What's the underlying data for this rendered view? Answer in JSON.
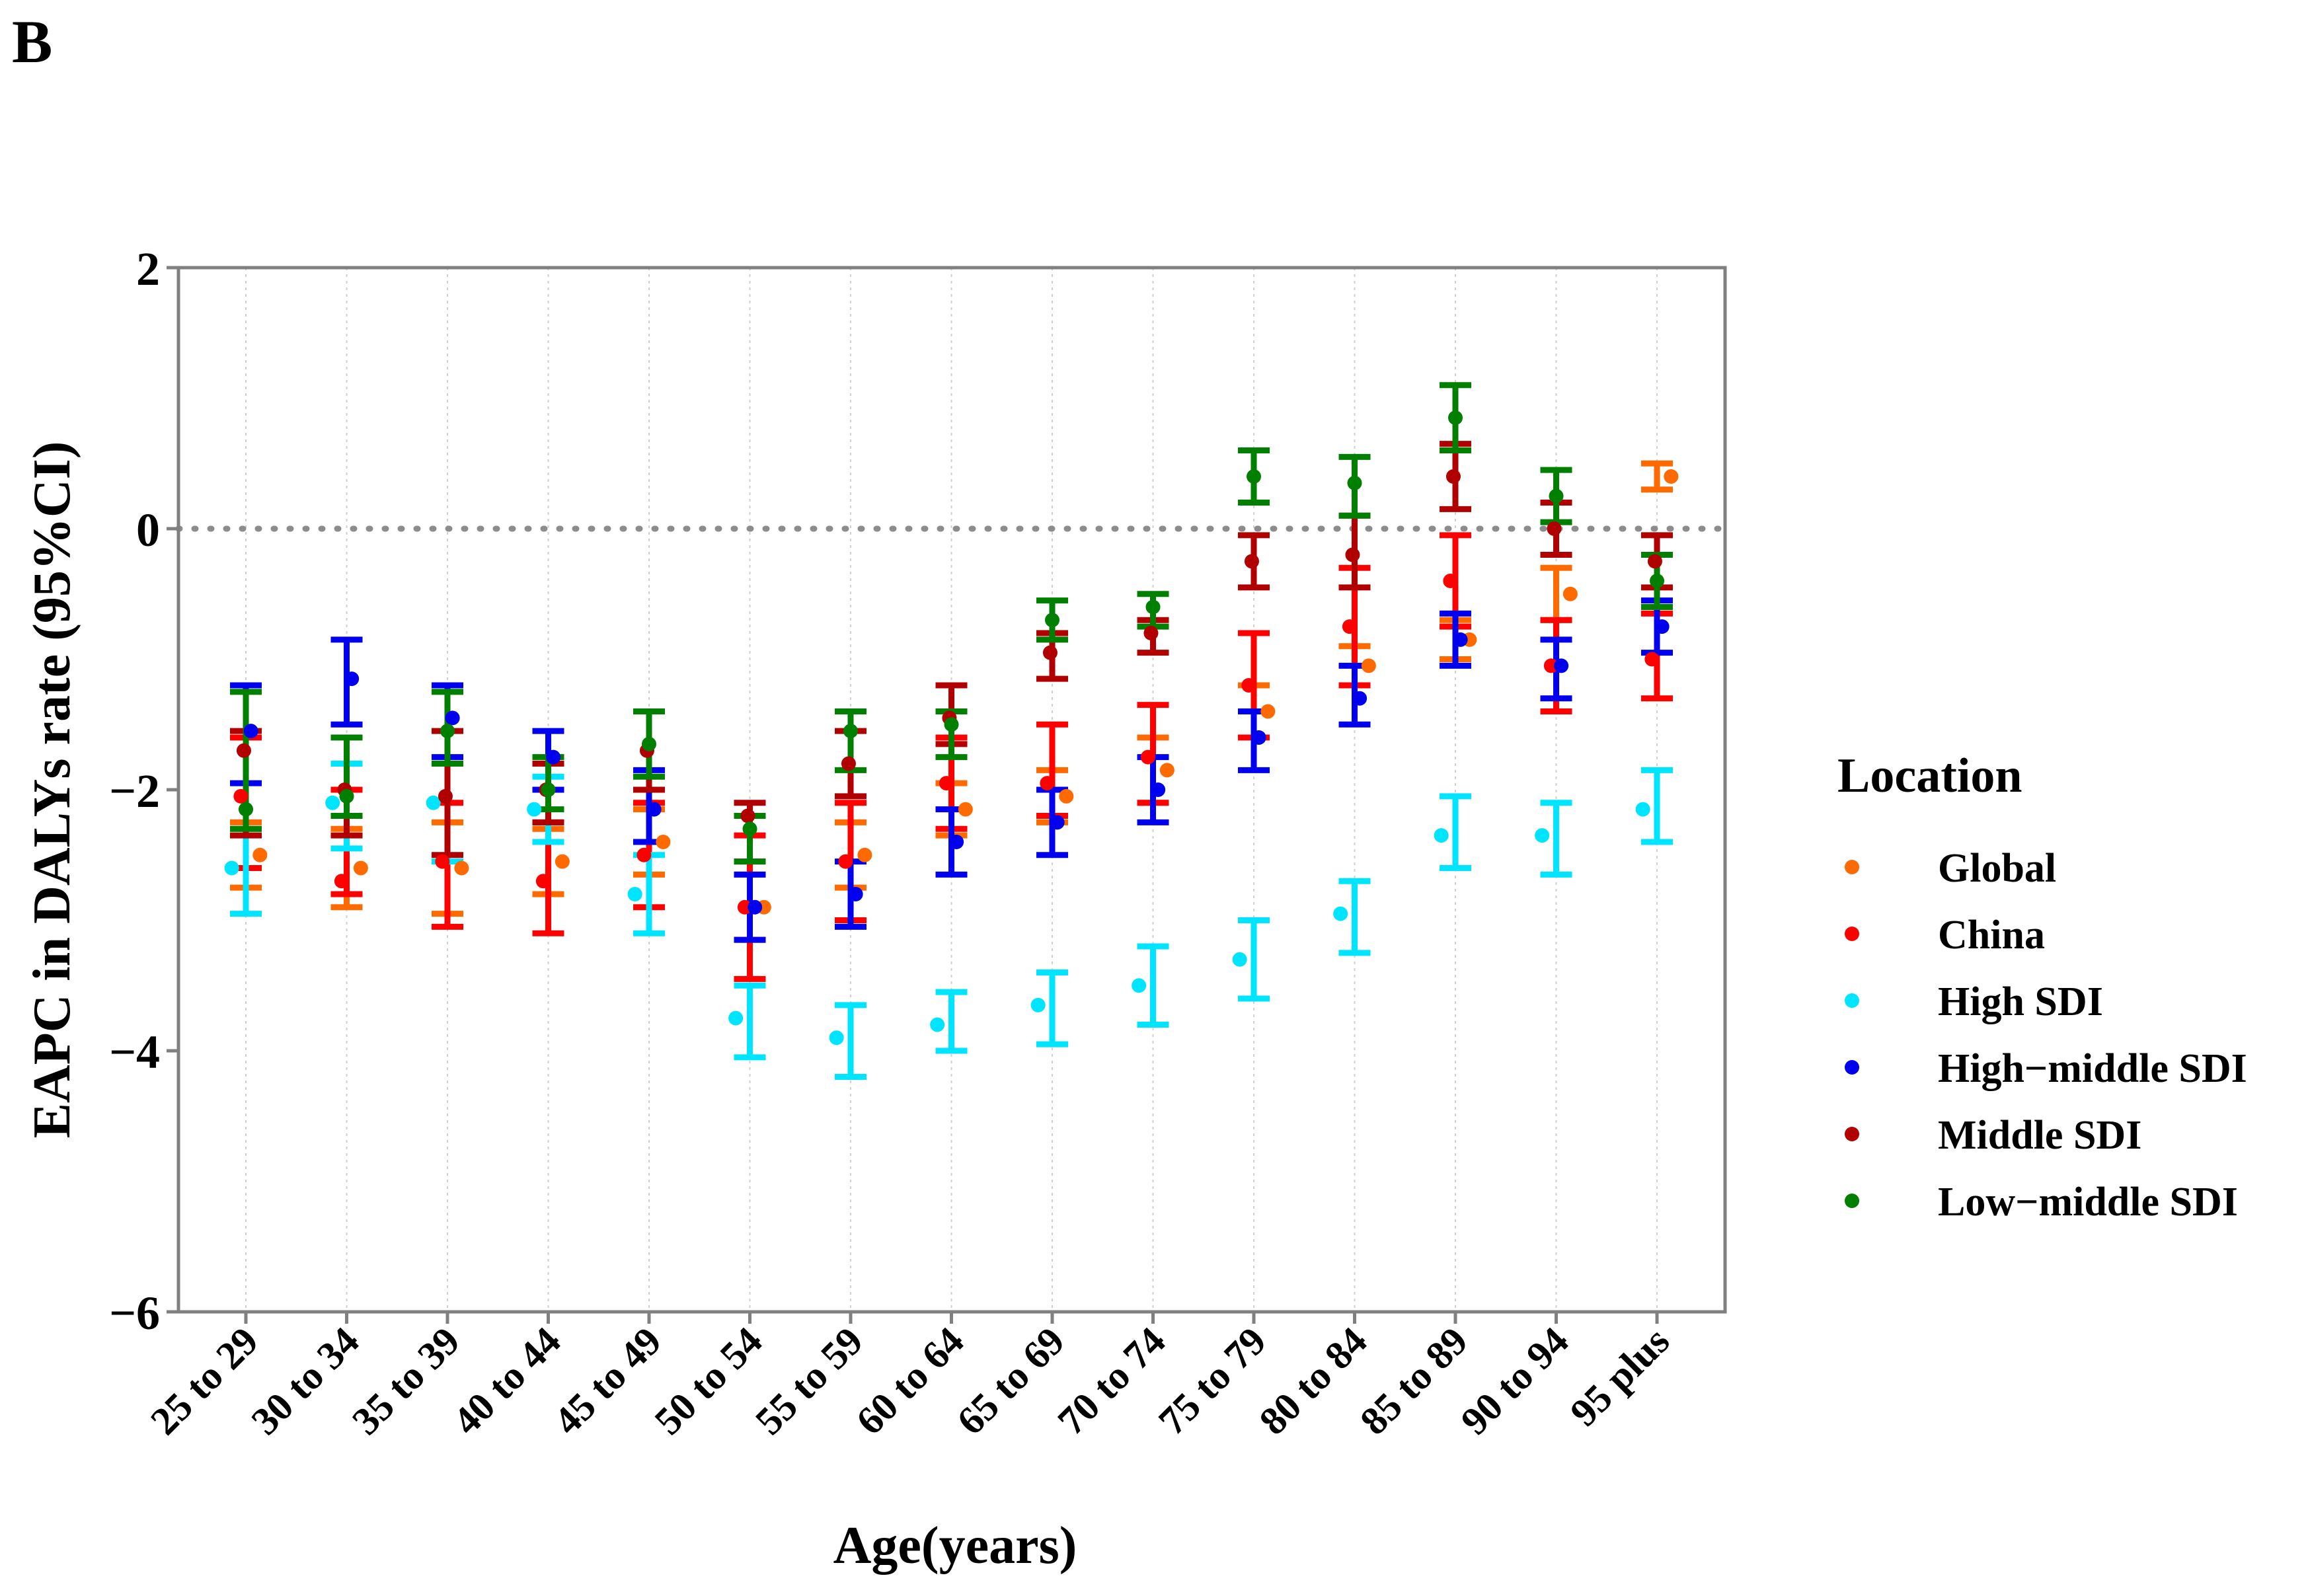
{
  "panel_label": "B",
  "chart_data": {
    "type": "scatter",
    "subtype": "point-errorbar",
    "title": "",
    "xlabel": "Age(years)",
    "ylabel": "EAPC in DALYs rate (95%CI)",
    "ylim": [
      -6,
      2
    ],
    "yticks": [
      2,
      0,
      -2,
      -4,
      -6
    ],
    "ytick_labels": [
      "2",
      "0",
      "−2",
      "−4",
      "−6"
    ],
    "reference_line": {
      "y": 0,
      "style": "dotted"
    },
    "grid": {
      "vertical": true,
      "horizontal": false
    },
    "legend": {
      "title": "Location",
      "position": "right"
    },
    "categories": [
      "25 to 29",
      "30 to 34",
      "35 to 39",
      "40 to 44",
      "45 to 49",
      "50 to 54",
      "55 to 59",
      "60 to 64",
      "65 to 69",
      "70 to 74",
      "75 to 79",
      "80 to 84",
      "85 to 89",
      "90 to 94",
      "95 plus"
    ],
    "series": [
      {
        "name": "Global",
        "color": "#FF6A00",
        "offset": 0.17,
        "values": [
          -2.5,
          -2.6,
          -2.6,
          -2.55,
          -2.4,
          -2.9,
          -2.5,
          -2.15,
          -2.05,
          -1.85,
          -1.4,
          -1.05,
          -0.85,
          -0.5,
          0.4
        ],
        "lower": [
          -2.75,
          -2.9,
          -2.95,
          -2.8,
          -2.65,
          -3.15,
          -2.75,
          -2.35,
          -2.25,
          -2.1,
          -1.6,
          -1.2,
          -1.0,
          -0.7,
          0.3
        ],
        "upper": [
          -2.25,
          -2.3,
          -2.25,
          -2.3,
          -2.15,
          -2.65,
          -2.25,
          -1.95,
          -1.85,
          -1.6,
          -1.2,
          -0.9,
          -0.7,
          -0.3,
          0.5
        ]
      },
      {
        "name": "China",
        "color": "#FF0000",
        "offset": 0.0,
        "values": [
          -2.05,
          -2.7,
          -2.55,
          -2.7,
          -2.5,
          -2.9,
          -2.55,
          -1.95,
          -1.95,
          -1.75,
          -1.2,
          -0.75,
          -0.4,
          -1.05,
          -1.0
        ],
        "lower": [
          -2.6,
          -2.8,
          -3.05,
          -3.1,
          -2.9,
          -3.45,
          -3.0,
          -2.3,
          -2.2,
          -2.1,
          -1.6,
          -1.2,
          -0.75,
          -1.4,
          -1.3
        ],
        "upper": [
          -1.6,
          -2.0,
          -2.1,
          -2.25,
          -2.1,
          -2.35,
          -2.1,
          -1.6,
          -1.5,
          -1.35,
          -0.8,
          -0.3,
          -0.05,
          -0.7,
          -0.65
        ]
      },
      {
        "name": "High SDI",
        "color": "#00E5FF",
        "offset": 0.0,
        "values": [
          -2.6,
          -2.1,
          -2.1,
          -2.15,
          -2.8,
          -3.75,
          -3.9,
          -3.8,
          -3.65,
          -3.5,
          -3.3,
          -2.95,
          -2.35,
          -2.35,
          -2.15
        ],
        "lower": [
          -2.95,
          -2.45,
          -2.55,
          -2.4,
          -3.1,
          -4.05,
          -4.2,
          -4.0,
          -3.95,
          -3.8,
          -3.6,
          -3.25,
          -2.6,
          -2.65,
          -2.4
        ],
        "upper": [
          -2.3,
          -1.8,
          -1.8,
          -1.9,
          -2.5,
          -3.5,
          -3.65,
          -3.55,
          -3.4,
          -3.2,
          -3.0,
          -2.7,
          -2.05,
          -2.1,
          -1.85
        ]
      },
      {
        "name": "High−middle SDI",
        "color": "#0000EE",
        "offset": 0.0,
        "values": [
          -1.55,
          -1.15,
          -1.45,
          -1.75,
          -2.15,
          -2.9,
          -2.8,
          -2.4,
          -2.25,
          -2.0,
          -1.6,
          -1.3,
          -0.85,
          -1.05,
          -0.75
        ],
        "lower": [
          -1.95,
          -1.5,
          -1.75,
          -2.0,
          -2.4,
          -3.15,
          -3.05,
          -2.65,
          -2.5,
          -2.25,
          -1.85,
          -1.5,
          -1.05,
          -1.3,
          -0.95
        ],
        "upper": [
          -1.2,
          -0.85,
          -1.2,
          -1.55,
          -1.85,
          -2.65,
          -2.55,
          -2.15,
          -2.0,
          -1.75,
          -1.4,
          -1.05,
          -0.65,
          -0.85,
          -0.55
        ]
      },
      {
        "name": "Middle SDI",
        "color": "#B00000",
        "offset": 0.0,
        "values": [
          -1.7,
          -2.0,
          -2.05,
          -2.0,
          -1.7,
          -2.2,
          -1.8,
          -1.45,
          -0.95,
          -0.8,
          -0.25,
          -0.2,
          0.4,
          0.0,
          -0.25
        ],
        "lower": [
          -2.35,
          -2.35,
          -2.5,
          -2.25,
          -2.0,
          -2.55,
          -2.05,
          -1.65,
          -1.15,
          -0.95,
          -0.45,
          -0.45,
          0.15,
          -0.2,
          -0.45
        ],
        "upper": [
          -1.55,
          -1.6,
          -1.55,
          -1.8,
          -1.4,
          -2.1,
          -1.55,
          -1.2,
          -0.8,
          -0.7,
          -0.05,
          0.1,
          0.65,
          0.2,
          -0.05
        ]
      },
      {
        "name": "Low−middle SDI",
        "color": "#007F00",
        "offset": 0.0,
        "values": [
          -2.15,
          -2.05,
          -1.55,
          -2.0,
          -1.65,
          -2.3,
          -1.55,
          -1.5,
          -0.7,
          -0.6,
          0.4,
          0.35,
          0.85,
          0.25,
          -0.4
        ],
        "lower": [
          -2.3,
          -2.2,
          -1.8,
          -2.15,
          -1.9,
          -2.55,
          -1.85,
          -1.75,
          -0.85,
          -0.75,
          0.2,
          0.1,
          0.6,
          0.05,
          -0.6
        ],
        "upper": [
          -1.25,
          -1.6,
          -1.25,
          -1.75,
          -1.4,
          -2.2,
          -1.4,
          -1.4,
          -0.55,
          -0.5,
          0.6,
          0.55,
          1.1,
          0.45,
          -0.2
        ]
      }
    ]
  }
}
